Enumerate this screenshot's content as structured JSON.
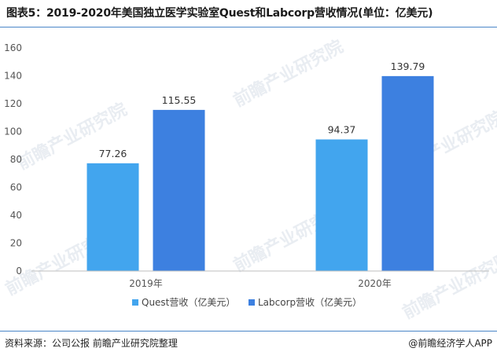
{
  "title": "图表5：2019-2020年美国独立医学实验室Quest和Labcorp营收情况(单位：亿美元)",
  "source": "资料来源：公司公报 前瞻产业研究院整理",
  "credit": "@前瞻经济学人APP",
  "watermark": "前瞻产业研究院",
  "chart_data": {
    "type": "bar",
    "categories": [
      "2019年",
      "2020年"
    ],
    "series": [
      {
        "name": "Quest营收（亿美元）",
        "values": [
          77.26,
          94.37
        ],
        "color": "#42a5ee"
      },
      {
        "name": "Labcorp营收（亿美元）",
        "values": [
          115.55,
          139.79
        ],
        "color": "#3d80e0"
      }
    ],
    "ylim": [
      0,
      160
    ],
    "yticks": [
      0,
      20,
      40,
      60,
      80,
      100,
      120,
      140,
      160
    ],
    "legend": "bottom-center",
    "grid": false
  }
}
